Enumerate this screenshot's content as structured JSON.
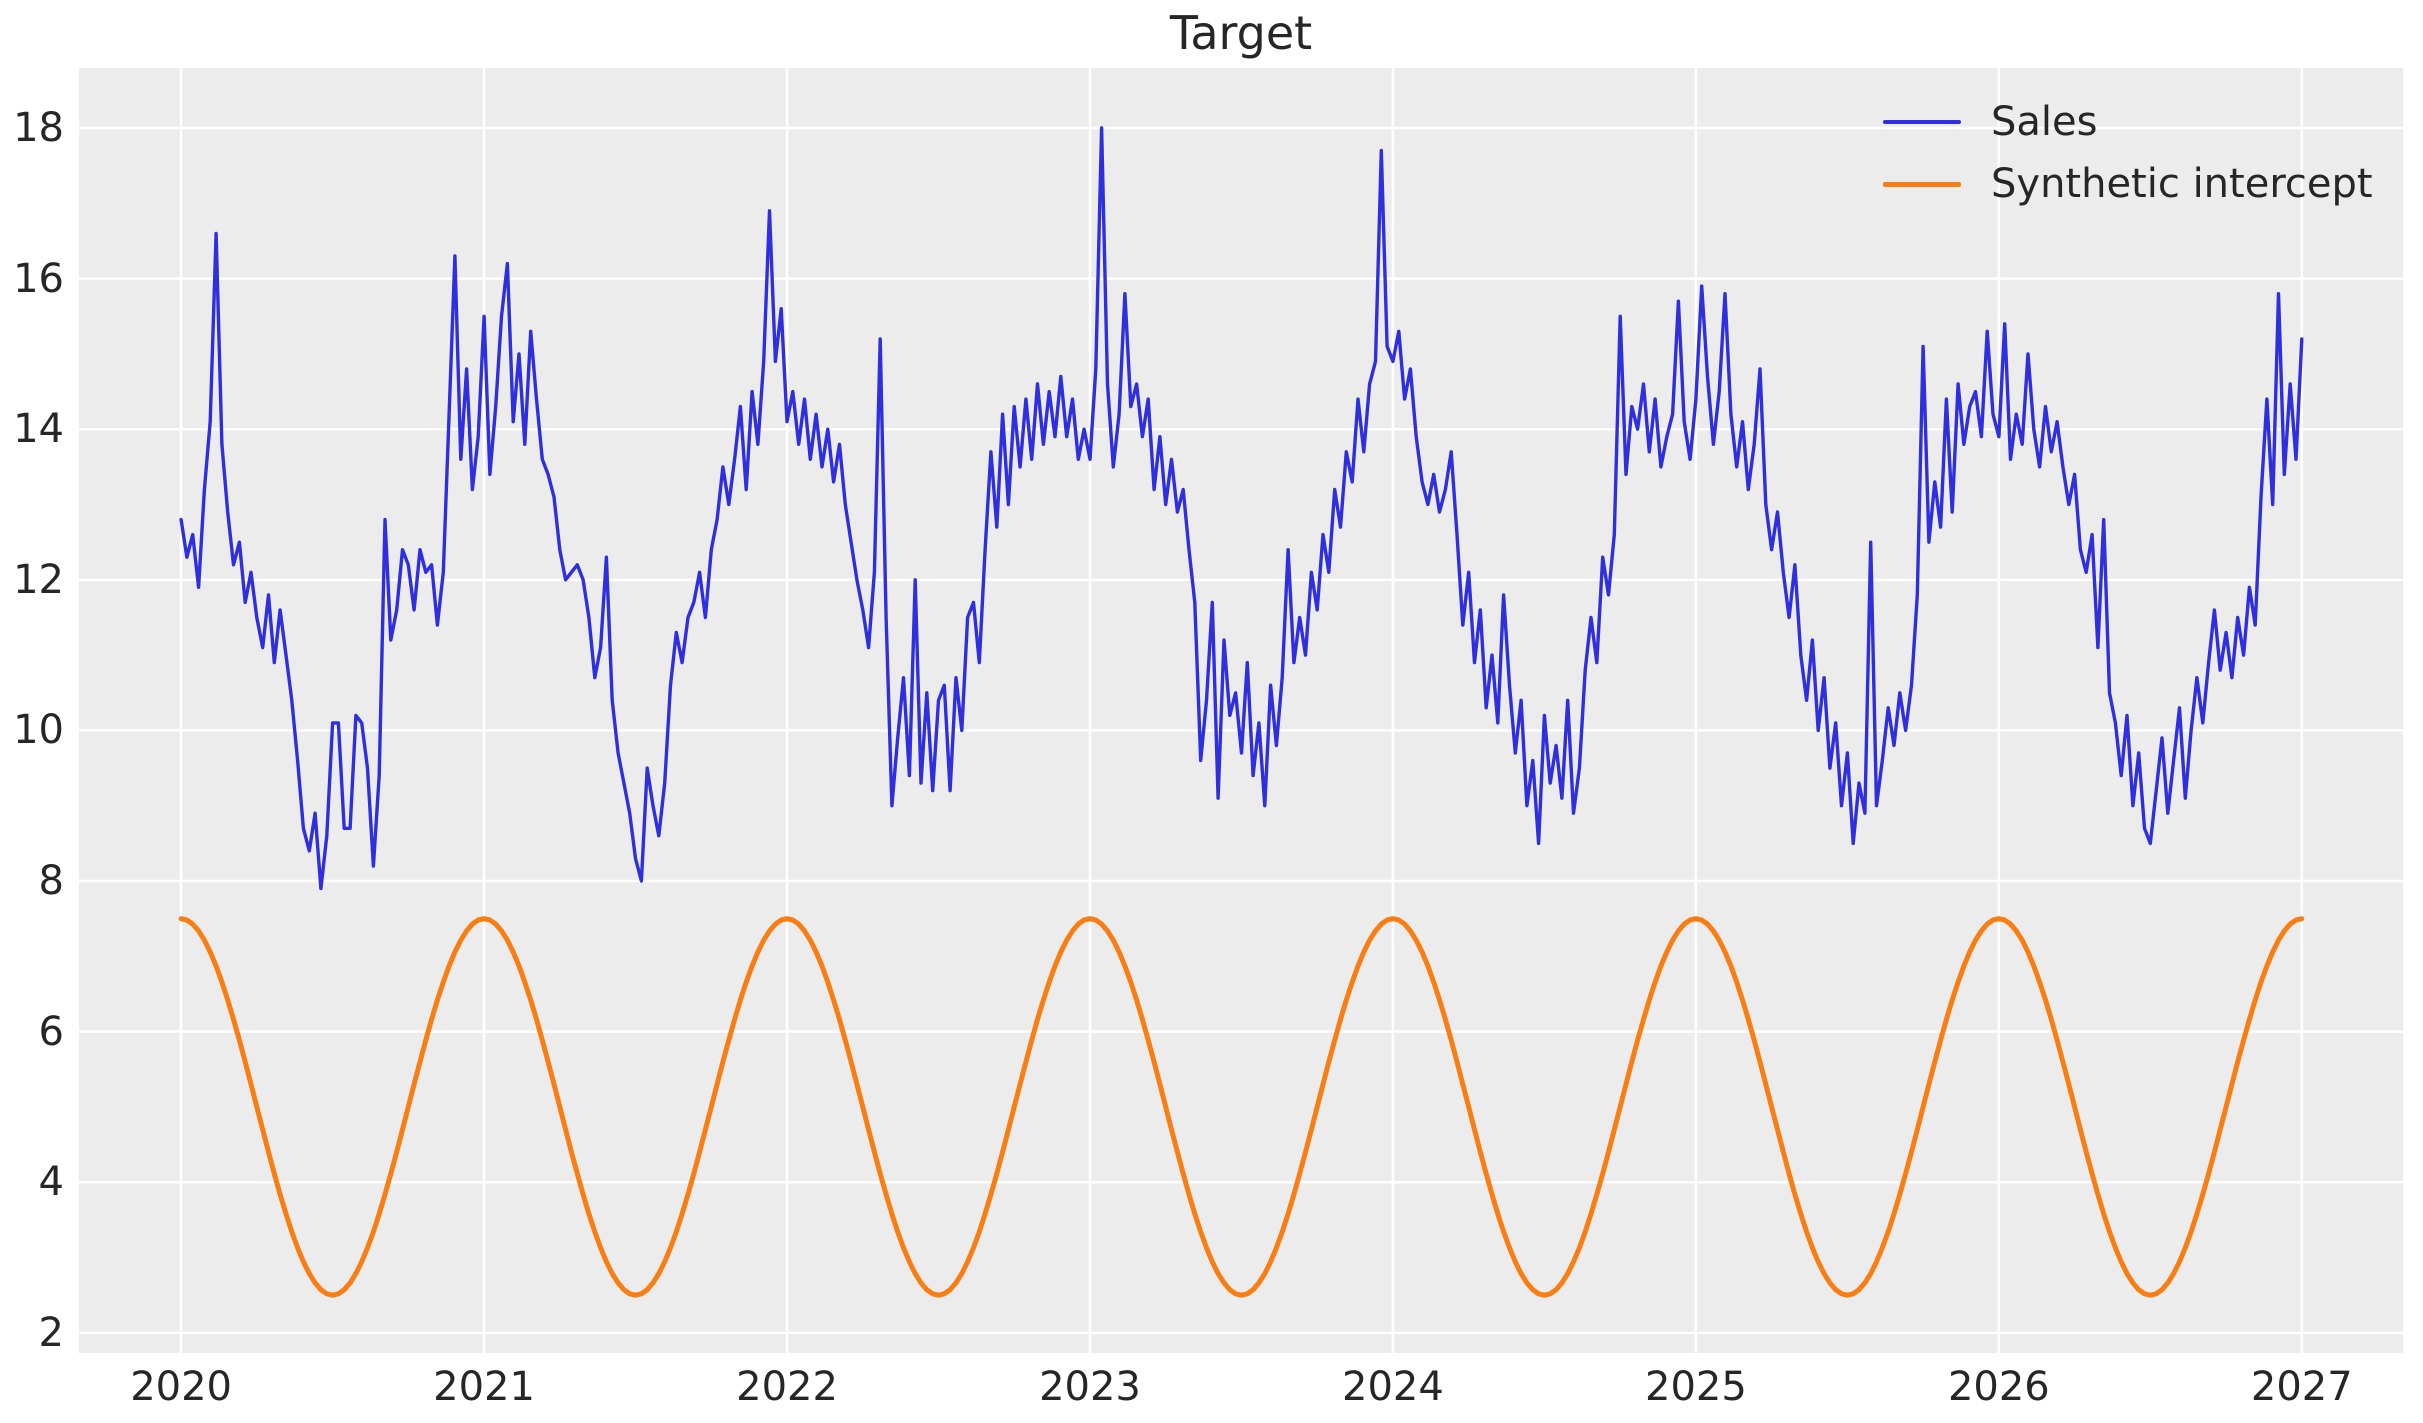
{
  "figure": {
    "title": "Target",
    "background_color": "#ffffff",
    "plot_background_color": "#ececec",
    "grid_color": "#ffffff",
    "text_color": "#262626"
  },
  "legend": {
    "position": "upper right",
    "items": [
      {
        "label": "Sales",
        "color": "#2f2fe0"
      },
      {
        "label": "Synthetic intercept",
        "color": "#f87e14"
      }
    ]
  },
  "axes": {
    "x_ticks": [
      "2020",
      "2021",
      "2022",
      "2023",
      "2024",
      "2025",
      "2026",
      "2027"
    ],
    "y_ticks": [
      "2",
      "4",
      "6",
      "8",
      "10",
      "12",
      "14",
      "16",
      "18"
    ],
    "xlim": [
      2019.663,
      2027.334
    ],
    "ylim": [
      1.732,
      18.797
    ]
  },
  "chart_data": {
    "type": "line",
    "title": "Target",
    "xlabel": "",
    "ylabel": "",
    "grid": true,
    "legend_position": "upper right",
    "x_tick_values": [
      2020,
      2021,
      2022,
      2023,
      2024,
      2025,
      2026,
      2027
    ],
    "y_tick_values": [
      2,
      4,
      6,
      8,
      10,
      12,
      14,
      16,
      18
    ],
    "x_unit": "year (weekly samples)",
    "series": [
      {
        "name": "Sales",
        "color": "#2f2fe0",
        "line_width": 3.4,
        "x_start": 2020,
        "x_step": 0.01923076923,
        "values": [
          12.8,
          12.3,
          12.6,
          11.9,
          13.2,
          14.1,
          16.6,
          13.8,
          12.9,
          12.2,
          12.5,
          11.7,
          12.1,
          11.5,
          11.1,
          11.8,
          10.9,
          11.6,
          11.0,
          10.4,
          9.6,
          8.7,
          8.4,
          8.9,
          7.9,
          8.6,
          10.1,
          10.1,
          8.7,
          8.7,
          10.2,
          10.1,
          9.5,
          8.2,
          9.4,
          12.8,
          11.2,
          11.6,
          12.4,
          12.2,
          11.6,
          12.4,
          12.1,
          12.2,
          11.4,
          12.1,
          14.2,
          16.3,
          13.6,
          14.8,
          13.2,
          13.9,
          15.5,
          13.4,
          14.3,
          15.5,
          16.2,
          14.1,
          15.0,
          13.8,
          15.3,
          14.4,
          13.6,
          13.4,
          13.1,
          12.4,
          12.0,
          12.1,
          12.2,
          12.0,
          11.5,
          10.7,
          11.1,
          12.3,
          10.4,
          9.7,
          9.3,
          8.9,
          8.3,
          8.0,
          9.5,
          9.0,
          8.6,
          9.3,
          10.6,
          11.3,
          10.9,
          11.5,
          11.7,
          12.1,
          11.5,
          12.4,
          12.8,
          13.5,
          13.0,
          13.6,
          14.3,
          13.2,
          14.5,
          13.8,
          14.9,
          16.9,
          14.9,
          15.6,
          14.1,
          14.5,
          13.8,
          14.4,
          13.6,
          14.2,
          13.5,
          14.0,
          13.3,
          13.8,
          13.0,
          12.5,
          12.0,
          11.6,
          11.1,
          12.1,
          15.2,
          11.5,
          9.0,
          9.9,
          10.7,
          9.4,
          12.0,
          9.3,
          10.5,
          9.2,
          10.4,
          10.6,
          9.2,
          10.7,
          10.0,
          11.5,
          11.7,
          10.9,
          12.4,
          13.7,
          12.7,
          14.2,
          13.0,
          14.3,
          13.5,
          14.4,
          13.6,
          14.6,
          13.8,
          14.5,
          13.9,
          14.7,
          13.9,
          14.4,
          13.6,
          14.0,
          13.6,
          14.8,
          18.0,
          14.6,
          13.5,
          14.2,
          15.8,
          14.3,
          14.6,
          13.9,
          14.4,
          13.2,
          13.9,
          13.0,
          13.6,
          12.9,
          13.2,
          12.4,
          11.7,
          9.6,
          10.4,
          11.7,
          9.1,
          11.2,
          10.2,
          10.5,
          9.7,
          10.9,
          9.4,
          10.1,
          9.0,
          10.6,
          9.8,
          10.7,
          12.4,
          10.9,
          11.5,
          11.0,
          12.1,
          11.6,
          12.6,
          12.1,
          13.2,
          12.7,
          13.7,
          13.3,
          14.4,
          13.7,
          14.6,
          14.9,
          17.7,
          15.1,
          14.9,
          15.3,
          14.4,
          14.8,
          13.9,
          13.3,
          13.0,
          13.4,
          12.9,
          13.2,
          13.7,
          12.6,
          11.4,
          12.1,
          10.9,
          11.6,
          10.3,
          11.0,
          10.1,
          11.8,
          10.6,
          9.7,
          10.4,
          9.0,
          9.6,
          8.5,
          10.2,
          9.3,
          9.8,
          9.1,
          10.4,
          8.9,
          9.5,
          10.8,
          11.5,
          10.9,
          12.3,
          11.8,
          12.6,
          15.5,
          13.4,
          14.3,
          14.0,
          14.6,
          13.7,
          14.4,
          13.5,
          13.9,
          14.2,
          15.7,
          14.1,
          13.6,
          14.4,
          15.9,
          14.7,
          13.8,
          14.5,
          15.8,
          14.2,
          13.5,
          14.1,
          13.2,
          13.8,
          14.8,
          13.0,
          12.4,
          12.9,
          12.1,
          11.5,
          12.2,
          11.0,
          10.4,
          11.2,
          10.0,
          10.7,
          9.5,
          10.1,
          9.0,
          9.7,
          8.5,
          9.3,
          8.9,
          12.5,
          9.0,
          9.6,
          10.3,
          9.8,
          10.5,
          10.0,
          10.6,
          11.8,
          15.1,
          12.5,
          13.3,
          12.7,
          14.4,
          12.9,
          14.6,
          13.8,
          14.3,
          14.5,
          13.9,
          15.3,
          14.2,
          13.9,
          15.4,
          13.6,
          14.2,
          13.8,
          15.0,
          14.0,
          13.5,
          14.3,
          13.7,
          14.1,
          13.5,
          13.0,
          13.4,
          12.4,
          12.1,
          12.6,
          11.1,
          12.8,
          10.5,
          10.1,
          9.4,
          10.2,
          9.0,
          9.7,
          8.7,
          8.5,
          9.2,
          9.9,
          8.9,
          9.6,
          10.3,
          9.1,
          10.0,
          10.7,
          10.1,
          10.9,
          11.6,
          10.8,
          11.3,
          10.7,
          11.5,
          11.0,
          11.9,
          11.4,
          13.1,
          14.4,
          13.0,
          15.8,
          13.4,
          14.6,
          13.6,
          15.2
        ]
      },
      {
        "name": "Synthetic intercept",
        "color": "#f87e14",
        "line_width": 5,
        "model": "sinusoid",
        "mean": 5,
        "amplitude": 2.5,
        "min": 2.5,
        "max": 7.5,
        "period_years": 1,
        "phase": "peaks at each year start",
        "x_start": 2020,
        "x_end": 2027,
        "x_step": 0.01923076923
      }
    ]
  }
}
